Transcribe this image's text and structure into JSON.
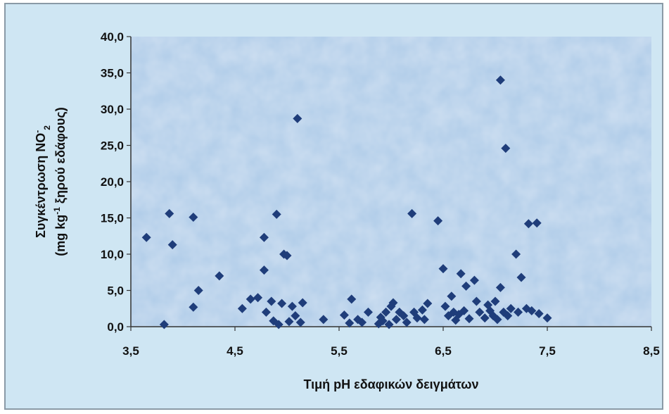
{
  "chart_data": {
    "type": "scatter",
    "title": "",
    "xlabel": "Τιμή pH εδαφικών δειγμάτων",
    "ylabel_line1": "Συγκέντρωση NO",
    "ylabel_line1_sup": "-",
    "ylabel_line1_sub": "2",
    "ylabel_line2_pre": "(mg kg",
    "ylabel_line2_sup": "-1",
    "ylabel_line2_post": " ξηρού εδάφους)",
    "xlim": [
      3.5,
      8.5
    ],
    "ylim": [
      0,
      40
    ],
    "x_ticks": [
      3.5,
      4.5,
      5.5,
      6.5,
      7.5,
      8.5
    ],
    "x_tick_labels": [
      "3,5",
      "4,5",
      "5,5",
      "6,5",
      "7,5",
      "8,5"
    ],
    "y_ticks": [
      0,
      5,
      10,
      15,
      20,
      25,
      30,
      35,
      40
    ],
    "y_tick_labels": [
      "0,0",
      "5,0",
      "10,0",
      "15,0",
      "20,0",
      "25,0",
      "30,0",
      "35,0",
      "40,0"
    ],
    "grid": false,
    "legend": "none",
    "marker": "diamond",
    "marker_color": "#1f3d7a",
    "series": [
      {
        "points": [
          [
            3.65,
            12.3
          ],
          [
            3.82,
            0.3
          ],
          [
            3.87,
            15.6
          ],
          [
            3.9,
            11.3
          ],
          [
            4.1,
            15.1
          ],
          [
            4.1,
            2.7
          ],
          [
            4.15,
            5.0
          ],
          [
            4.35,
            7.0
          ],
          [
            4.57,
            2.5
          ],
          [
            4.65,
            3.8
          ],
          [
            4.72,
            4.0
          ],
          [
            4.78,
            12.3
          ],
          [
            4.78,
            7.8
          ],
          [
            4.8,
            2.0
          ],
          [
            4.85,
            3.5
          ],
          [
            4.87,
            0.8
          ],
          [
            4.9,
            15.5
          ],
          [
            4.92,
            0.3
          ],
          [
            4.95,
            3.2
          ],
          [
            4.97,
            10.0
          ],
          [
            5.0,
            9.8
          ],
          [
            5.02,
            0.7
          ],
          [
            5.05,
            2.8
          ],
          [
            5.08,
            1.5
          ],
          [
            5.1,
            28.7
          ],
          [
            5.13,
            0.6
          ],
          [
            5.15,
            3.3
          ],
          [
            5.35,
            1.0
          ],
          [
            5.55,
            1.6
          ],
          [
            5.6,
            0.5
          ],
          [
            5.62,
            3.8
          ],
          [
            5.68,
            1.0
          ],
          [
            5.72,
            0.6
          ],
          [
            5.78,
            2.0
          ],
          [
            5.88,
            0.4
          ],
          [
            5.9,
            1.3
          ],
          [
            5.92,
            0.8
          ],
          [
            5.95,
            2.0
          ],
          [
            5.98,
            0.3
          ],
          [
            6.0,
            2.8
          ],
          [
            6.02,
            3.3
          ],
          [
            6.05,
            1.0
          ],
          [
            6.08,
            2.0
          ],
          [
            6.12,
            1.5
          ],
          [
            6.15,
            0.6
          ],
          [
            6.2,
            15.6
          ],
          [
            6.22,
            2.0
          ],
          [
            6.25,
            1.2
          ],
          [
            6.3,
            2.3
          ],
          [
            6.32,
            1.0
          ],
          [
            6.35,
            3.2
          ],
          [
            6.45,
            14.6
          ],
          [
            6.5,
            8.0
          ],
          [
            6.52,
            2.8
          ],
          [
            6.55,
            1.5
          ],
          [
            6.58,
            4.2
          ],
          [
            6.6,
            2.0
          ],
          [
            6.62,
            0.9
          ],
          [
            6.65,
            1.7
          ],
          [
            6.67,
            7.3
          ],
          [
            6.7,
            2.2
          ],
          [
            6.72,
            5.6
          ],
          [
            6.75,
            1.1
          ],
          [
            6.8,
            6.4
          ],
          [
            6.82,
            3.5
          ],
          [
            6.85,
            2.0
          ],
          [
            6.9,
            1.2
          ],
          [
            6.93,
            3.0
          ],
          [
            6.95,
            2.2
          ],
          [
            6.98,
            1.5
          ],
          [
            7.0,
            3.5
          ],
          [
            7.02,
            1.0
          ],
          [
            7.05,
            34.0
          ],
          [
            7.05,
            5.4
          ],
          [
            7.08,
            2.0
          ],
          [
            7.1,
            24.6
          ],
          [
            7.12,
            1.5
          ],
          [
            7.15,
            2.5
          ],
          [
            7.2,
            10.0
          ],
          [
            7.22,
            2.0
          ],
          [
            7.25,
            6.8
          ],
          [
            7.3,
            2.5
          ],
          [
            7.32,
            14.2
          ],
          [
            7.35,
            2.2
          ],
          [
            7.4,
            14.3
          ],
          [
            7.42,
            1.8
          ],
          [
            7.5,
            1.2
          ]
        ]
      }
    ]
  }
}
